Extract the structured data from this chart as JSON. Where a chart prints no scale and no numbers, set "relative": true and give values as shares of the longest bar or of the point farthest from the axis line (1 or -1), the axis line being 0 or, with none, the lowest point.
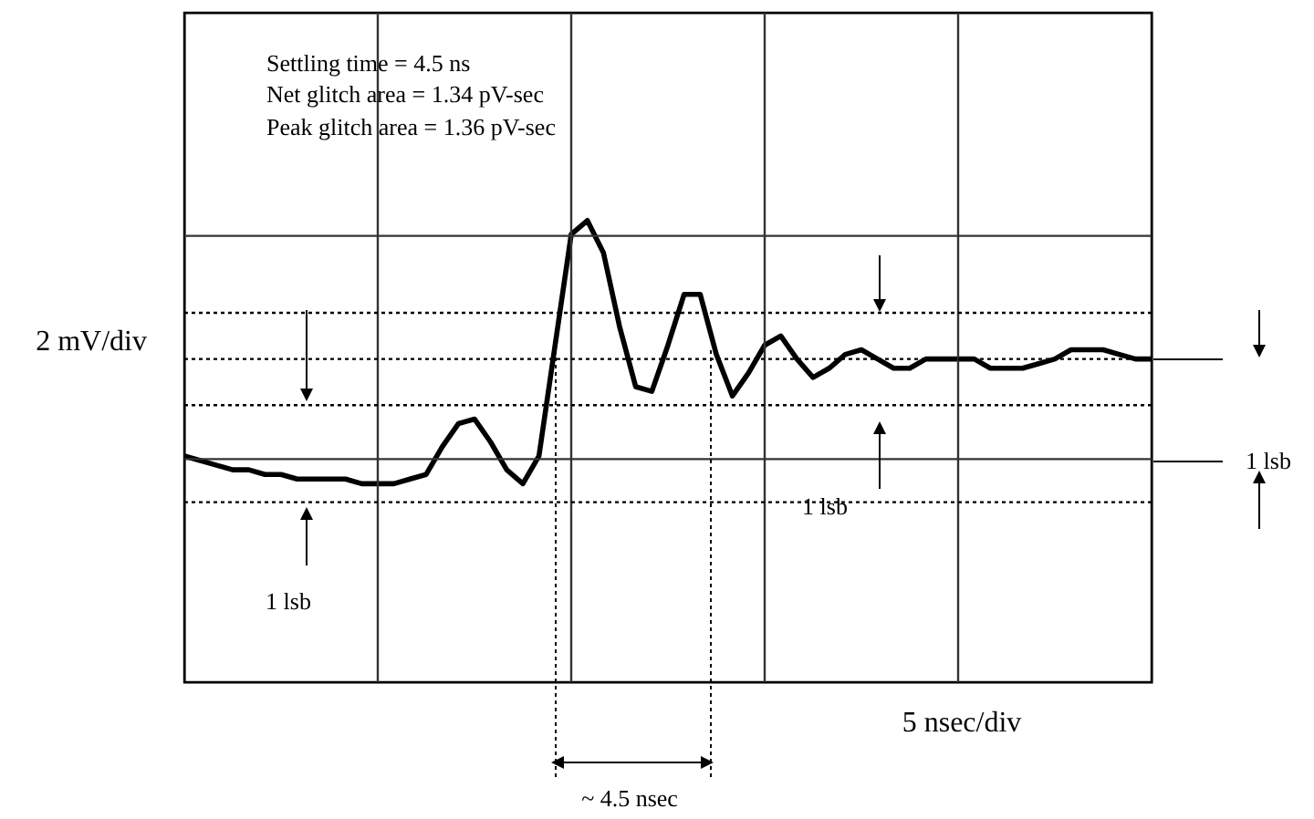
{
  "chart_data": {
    "type": "line",
    "relative": true,
    "grid": true,
    "xlabel": "5 nsec/div",
    "ylabel": "2 mV/div",
    "categories": [
      null,
      null,
      null,
      null,
      null,
      null,
      null,
      null,
      null,
      null,
      null,
      null,
      null,
      null,
      null,
      null,
      null,
      null,
      null,
      null,
      null,
      null,
      null,
      null,
      null,
      null,
      null,
      null,
      null,
      null,
      null,
      null,
      null,
      null,
      null,
      null,
      null,
      null,
      null,
      null,
      null,
      null,
      null,
      null,
      null,
      null,
      null,
      null,
      null,
      null,
      null,
      null,
      null,
      null,
      null,
      null,
      null,
      null,
      null,
      null,
      null
    ],
    "series": [
      {
        "color": "#000000",
        "values": [
          0.49,
          0.48,
          0.47,
          0.46,
          0.46,
          0.45,
          0.45,
          0.44,
          0.44,
          0.44,
          0.44,
          0.43,
          0.43,
          0.43,
          0.44,
          0.45,
          0.51,
          0.56,
          0.57,
          0.52,
          0.46,
          0.43,
          0.49,
          0.73,
          0.97,
          1,
          0.93,
          0.77,
          0.64,
          0.63,
          0.73,
          0.84,
          0.84,
          0.71,
          0.62,
          0.67,
          0.73,
          0.75,
          0.7,
          0.66,
          0.68,
          0.71,
          0.72,
          0.7,
          0.68,
          0.68,
          0.7,
          0.7,
          0.7,
          0.7,
          0.68,
          0.68,
          0.68,
          0.69,
          0.7,
          0.72,
          0.72,
          0.72,
          0.71,
          0.7,
          0.7
        ]
      }
    ],
    "ref_lines": [
      {
        "axis": "y",
        "value": 0.8,
        "line_style": "dotted"
      },
      {
        "axis": "y",
        "value": 0.7,
        "line_style": "dotted"
      },
      {
        "axis": "y",
        "value": 0.6,
        "line_style": "dotted"
      },
      {
        "axis": "y",
        "value": 0.39,
        "line_style": "dotted"
      }
    ],
    "annotations": [
      "Settling time =     4.5 ns",
      "Net glitch area =  1.34 pV-sec",
      "Peak glitch area = 1.36 pV-sec",
      "1 lsb",
      "1 lsb",
      "1 lsb",
      "~ 4.5 nsec"
    ]
  }
}
